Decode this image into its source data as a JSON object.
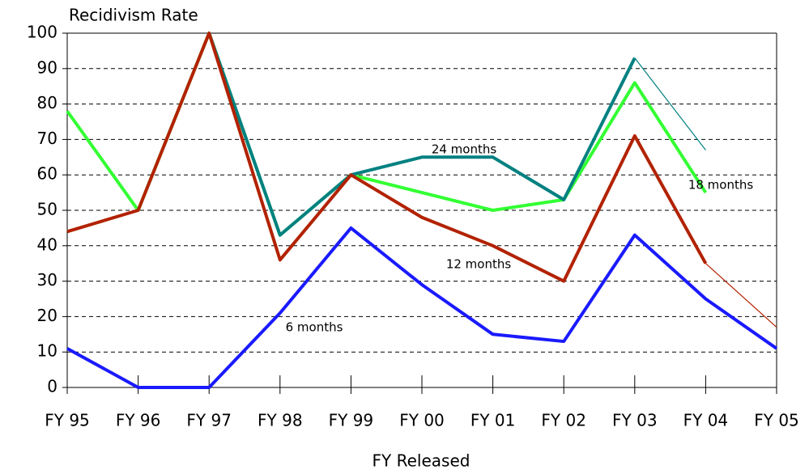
{
  "chart_data": {
    "type": "line",
    "title": "Recidivism Rate",
    "x_label": "FY Released",
    "categories": [
      "FY 95",
      "FY 96",
      "FY 97",
      "FY 98",
      "FY 99",
      "FY 00",
      "FY 01",
      "FY 02",
      "FY 03",
      "FY 04",
      "FY 05"
    ],
    "series": [
      {
        "name": "18 months",
        "color": "#33ff33",
        "values": [
          78,
          50,
          100,
          43,
          60,
          55,
          50,
          53,
          86,
          55,
          null
        ],
        "projected_values": null
      },
      {
        "name": "24 months",
        "color": "#008080",
        "values": [
          null,
          null,
          100,
          43,
          60,
          65,
          65,
          53,
          93,
          null,
          null
        ],
        "projected_values": [
          null,
          null,
          null,
          null,
          null,
          null,
          null,
          null,
          93,
          67,
          null
        ]
      },
      {
        "name": "12 months",
        "color": "#b22200",
        "values": [
          44,
          50,
          100,
          36,
          60,
          48,
          40,
          30,
          71,
          35,
          null
        ],
        "projected_values": [
          null,
          null,
          null,
          null,
          null,
          null,
          null,
          null,
          null,
          35,
          17
        ]
      },
      {
        "name": "6 months",
        "color": "#1a1aff",
        "values": [
          11,
          0,
          0,
          21,
          45,
          29,
          15,
          13,
          43,
          25,
          11
        ],
        "projected_values": null
      }
    ],
    "ylim": [
      0,
      100
    ],
    "yticks": [
      0,
      10,
      20,
      30,
      40,
      50,
      60,
      70,
      80,
      90,
      100
    ],
    "grid": true
  }
}
